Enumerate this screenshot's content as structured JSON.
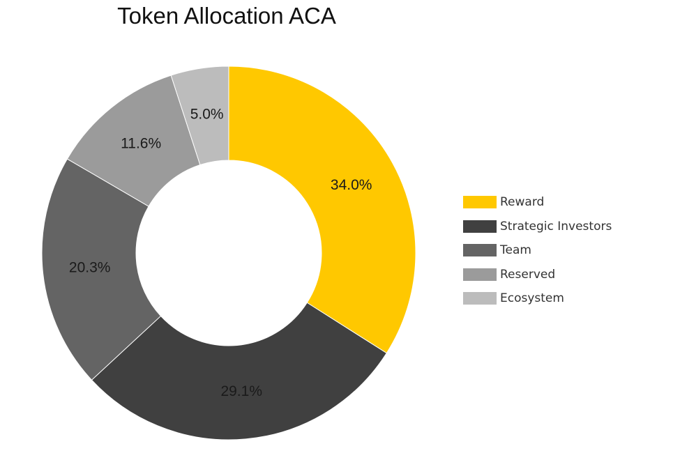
{
  "chart_data": {
    "type": "pie",
    "title": "Token Allocation ACA",
    "categories": [
      "Reward",
      "Strategic Investors",
      "Team",
      "Reserved",
      "Ecosystem"
    ],
    "values": [
      34.0,
      29.1,
      20.3,
      11.6,
      5.0
    ],
    "value_labels": [
      "34.0%",
      "29.1%",
      "20.3%",
      "11.6%",
      "5.0%"
    ],
    "colors": [
      "#ffc800",
      "#404040",
      "#646464",
      "#9b9b9b",
      "#bcbcbc"
    ],
    "donut": true,
    "legend_position": "right"
  }
}
